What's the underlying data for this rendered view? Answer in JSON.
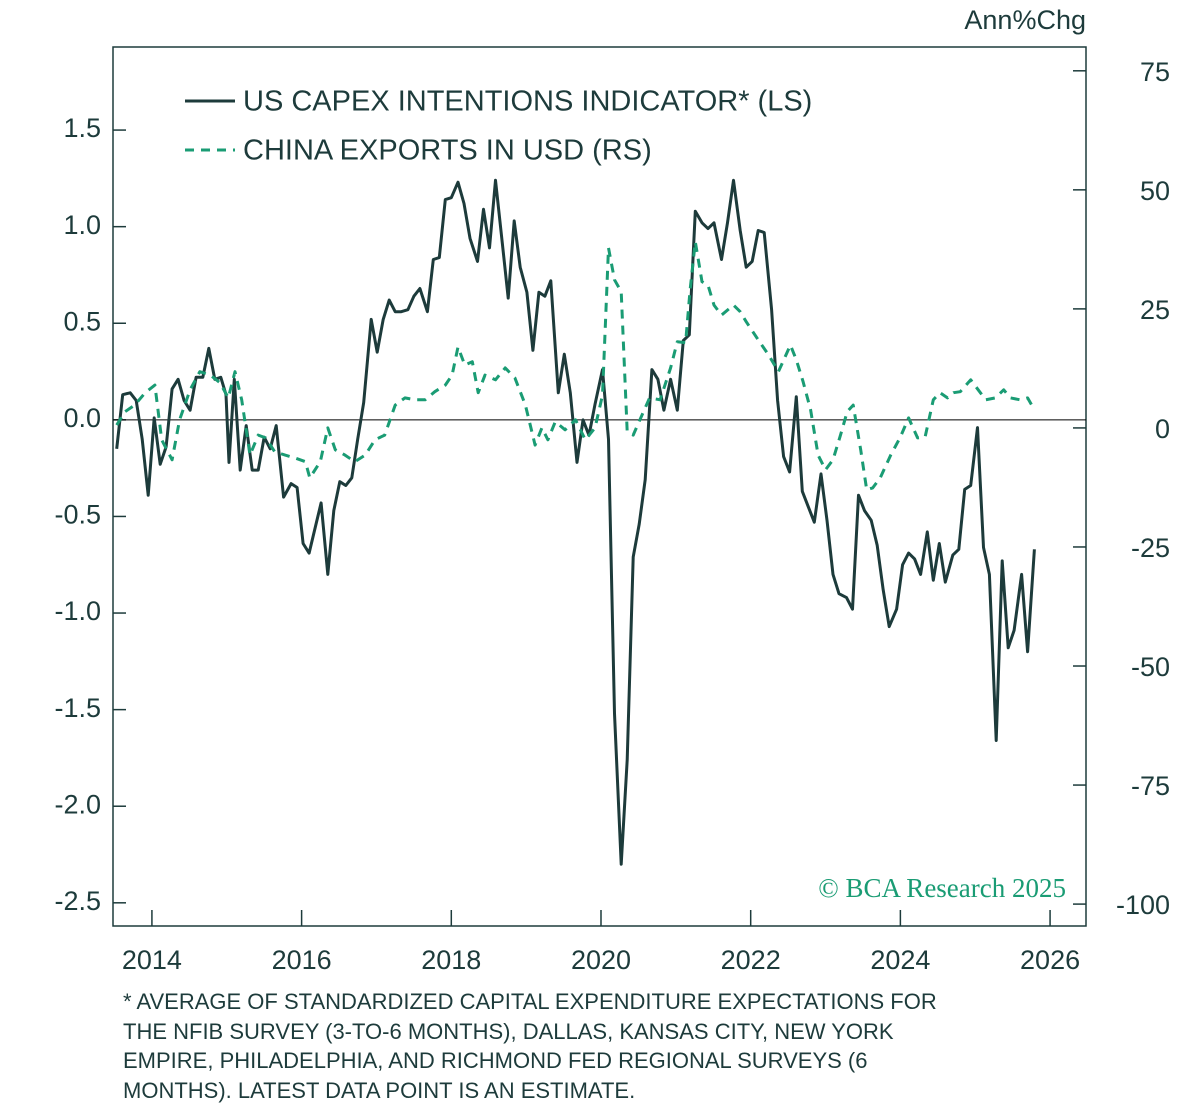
{
  "chart_data": {
    "type": "line",
    "y2_label": "Ann%Chg",
    "watermark": "© BCA Research 2025",
    "footnote": [
      "*  AVERAGE OF STANDARDIZED CAPITAL EXPENDITURE EXPECTATIONS FOR",
      "THE NFIB SURVEY (3-TO-6 MONTHS), DALLAS, KANSAS CITY, NEW YORK",
      "EMPIRE, PHILADELPHIA, AND RICHMOND FED REGIONAL SURVEYS (6",
      "MONTHS). LATEST DATA POINT IS AN ESTIMATE."
    ],
    "xlim": [
      2013.48,
      2026.48
    ],
    "xticks": [
      2014,
      2016,
      2018,
      2020,
      2022,
      2024,
      2026
    ],
    "ylim": [
      -2.62,
      1.93
    ],
    "yticks": [
      -2.5,
      {
        "value": -2,
        "label": "-2.0"
      },
      -1.5,
      {
        "value": -1,
        "label": "-1.0"
      },
      -0.5,
      {
        "value": 0,
        "label": "0.0"
      },
      0.5,
      {
        "value": 1,
        "label": "1.0"
      },
      1.5
    ],
    "y2lim": [
      -104.6,
      80
    ],
    "y2ticks": [
      -100,
      -75,
      -50,
      -25,
      0,
      25,
      50,
      75
    ],
    "zero_line": true,
    "series": [
      {
        "name": "US CAPEX INTENTIONS INDICATOR* (LS)",
        "color": "#1d3b3b",
        "dash": false,
        "axis": "y",
        "x": [
          2013.53,
          2013.61,
          2013.71,
          2013.79,
          2013.87,
          2013.95,
          2014.03,
          2014.11,
          2014.19,
          2014.27,
          2014.35,
          2014.43,
          2014.51,
          2014.59,
          2014.68,
          2014.76,
          2014.84,
          2014.92,
          2014.99,
          2015.03,
          2015.1,
          2015.18,
          2015.26,
          2015.34,
          2015.42,
          2015.5,
          2015.58,
          2015.66,
          2015.76,
          2015.86,
          2015.94,
          2016.02,
          2016.1,
          2016.18,
          2016.26,
          2016.35,
          2016.43,
          2016.51,
          2016.59,
          2016.67,
          2016.75,
          2016.83,
          2016.93,
          2017.01,
          2017.09,
          2017.17,
          2017.25,
          2017.33,
          2017.42,
          2017.5,
          2017.58,
          2017.68,
          2017.76,
          2017.84,
          2017.92,
          2018.0,
          2018.09,
          2018.17,
          2018.25,
          2018.35,
          2018.43,
          2018.51,
          2018.59,
          2018.68,
          2018.76,
          2018.84,
          2018.92,
          2019.01,
          2019.09,
          2019.17,
          2019.25,
          2019.33,
          2019.43,
          2019.51,
          2019.59,
          2019.68,
          2019.76,
          2019.84,
          2019.92,
          2020.02,
          2020.1,
          2020.18,
          2020.27,
          2020.35,
          2020.43,
          2020.51,
          2020.59,
          2020.68,
          2020.76,
          2020.84,
          2020.93,
          2021.02,
          2021.1,
          2021.18,
          2021.26,
          2021.35,
          2021.43,
          2021.51,
          2021.61,
          2021.69,
          2021.77,
          2021.86,
          2021.94,
          2022.02,
          2022.1,
          2022.18,
          2022.28,
          2022.36,
          2022.44,
          2022.52,
          2022.61,
          2022.69,
          2022.77,
          2022.85,
          2022.94,
          2023.02,
          2023.1,
          2023.18,
          2023.28,
          2023.36,
          2023.44,
          2023.52,
          2023.61,
          2023.69,
          2023.77,
          2023.85,
          2023.95,
          2024.03,
          2024.11,
          2024.19,
          2024.27,
          2024.36,
          2024.44,
          2024.52,
          2024.6,
          2024.7,
          2024.78,
          2024.86,
          2024.94,
          2025.03,
          2025.11,
          2025.19,
          2025.28,
          2025.36,
          2025.44,
          2025.52,
          2025.62,
          2025.7,
          2025.79
        ],
        "values": [
          -0.15,
          0.13,
          0.14,
          0.1,
          -0.1,
          -0.39,
          0.01,
          -0.23,
          -0.14,
          0.16,
          0.21,
          0.1,
          0.05,
          0.22,
          0.22,
          0.37,
          0.21,
          0.22,
          0.13,
          -0.22,
          0.21,
          -0.26,
          -0.03,
          -0.26,
          -0.26,
          -0.09,
          -0.15,
          -0.03,
          -0.4,
          -0.33,
          -0.35,
          -0.64,
          -0.69,
          -0.56,
          -0.43,
          -0.8,
          -0.47,
          -0.32,
          -0.34,
          -0.3,
          -0.1,
          0.09,
          0.52,
          0.35,
          0.52,
          0.62,
          0.56,
          0.56,
          0.57,
          0.64,
          0.68,
          0.56,
          0.83,
          0.84,
          1.14,
          1.15,
          1.23,
          1.12,
          0.94,
          0.82,
          1.09,
          0.89,
          1.24,
          0.92,
          0.63,
          1.03,
          0.79,
          0.66,
          0.36,
          0.66,
          0.64,
          0.72,
          0.14,
          0.34,
          0.14,
          -0.22,
          0.0,
          -0.08,
          0.08,
          0.26,
          -0.1,
          -1.52,
          -2.3,
          -1.76,
          -0.71,
          -0.54,
          -0.31,
          0.26,
          0.21,
          0.05,
          0.21,
          0.05,
          0.41,
          0.44,
          1.08,
          1.02,
          0.99,
          1.02,
          0.83,
          1.02,
          1.24,
          0.98,
          0.79,
          0.82,
          0.98,
          0.97,
          0.57,
          0.1,
          -0.19,
          -0.27,
          0.12,
          -0.37,
          -0.45,
          -0.53,
          -0.28,
          -0.52,
          -0.8,
          -0.9,
          -0.92,
          -0.98,
          -0.39,
          -0.47,
          -0.52,
          -0.65,
          -0.88,
          -1.07,
          -0.98,
          -0.75,
          -0.69,
          -0.72,
          -0.8,
          -0.58,
          -0.83,
          -0.64,
          -0.84,
          -0.7,
          -0.67,
          -0.36,
          -0.34,
          -0.04,
          -0.66,
          -0.8,
          -1.66,
          -0.73,
          -1.18,
          -1.09,
          -0.8,
          -1.2,
          -0.67
        ]
      },
      {
        "name": "CHINA EXPORTS IN USD (RS)",
        "color": "#1a9c74",
        "dash": true,
        "axis": "y2",
        "x": [
          2013.53,
          2013.64,
          2013.77,
          2013.91,
          2014.04,
          2014.13,
          2014.27,
          2014.37,
          2014.51,
          2014.64,
          2014.78,
          2014.91,
          2015.02,
          2015.11,
          2015.2,
          2015.31,
          2015.42,
          2015.52,
          2015.64,
          2015.78,
          2015.91,
          2016.05,
          2016.11,
          2016.25,
          2016.35,
          2016.45,
          2016.58,
          2016.71,
          2016.85,
          2016.98,
          2017.11,
          2017.25,
          2017.38,
          2017.52,
          2017.65,
          2017.78,
          2017.92,
          2018.01,
          2018.09,
          2018.18,
          2018.28,
          2018.36,
          2018.45,
          2018.59,
          2018.72,
          2018.85,
          2018.99,
          2019.12,
          2019.21,
          2019.29,
          2019.39,
          2019.52,
          2019.66,
          2019.79,
          2019.92,
          2020.02,
          2020.1,
          2020.18,
          2020.27,
          2020.35,
          2020.43,
          2020.52,
          2020.65,
          2020.79,
          2020.93,
          2021.02,
          2021.13,
          2021.19,
          2021.26,
          2021.35,
          2021.43,
          2021.51,
          2021.61,
          2021.77,
          2021.86,
          2021.94,
          2022.1,
          2022.24,
          2022.37,
          2022.53,
          2022.61,
          2022.7,
          2022.8,
          2022.9,
          2023.0,
          2023.1,
          2023.2,
          2023.29,
          2023.37,
          2023.47,
          2023.55,
          2023.63,
          2023.73,
          2023.87,
          2024.0,
          2024.11,
          2024.23,
          2024.33,
          2024.44,
          2024.53,
          2024.63,
          2024.71,
          2024.8,
          2024.94,
          2025.04,
          2025.14,
          2025.27,
          2025.38,
          2025.47,
          2025.6,
          2025.7,
          2025.79
        ],
        "values": [
          0.6,
          3.4,
          4.8,
          7.4,
          9.0,
          -2.5,
          -6.7,
          1.7,
          8.0,
          11.8,
          11.1,
          9.5,
          6.3,
          11.8,
          5.9,
          -5.7,
          -1.5,
          -2.1,
          -5.0,
          -5.7,
          -6.3,
          -7.1,
          -10.5,
          -7.1,
          0,
          -4.6,
          -5.7,
          -7.1,
          -5.7,
          -2.5,
          -1.5,
          4.8,
          6.3,
          5.9,
          5.9,
          7.6,
          9.0,
          11.1,
          17.0,
          13.2,
          13.9,
          7.4,
          11.1,
          10.1,
          12.6,
          10.5,
          4.8,
          -3.6,
          0,
          -2.5,
          1.3,
          -0.4,
          1.7,
          -2.5,
          0,
          6.9,
          37.8,
          31.1,
          28.6,
          -0.8,
          -1.5,
          1.7,
          6.3,
          5.9,
          12.6,
          18.1,
          17.9,
          29.0,
          39.1,
          30.7,
          30.0,
          25.8,
          23.7,
          25.8,
          24.4,
          22.3,
          18.5,
          15.3,
          11.8,
          17.4,
          14.3,
          9.7,
          3.8,
          -5.7,
          -8.8,
          -6.7,
          -1.5,
          3.4,
          4.8,
          -4.6,
          -13.0,
          -12.6,
          -10.5,
          -5.7,
          -1.9,
          2.1,
          -2.1,
          -1.9,
          5.9,
          7.4,
          6.3,
          7.4,
          7.6,
          10.1,
          8.0,
          5.9,
          6.3,
          8.0,
          6.3,
          5.9,
          6.3,
          3.8
        ]
      }
    ]
  }
}
